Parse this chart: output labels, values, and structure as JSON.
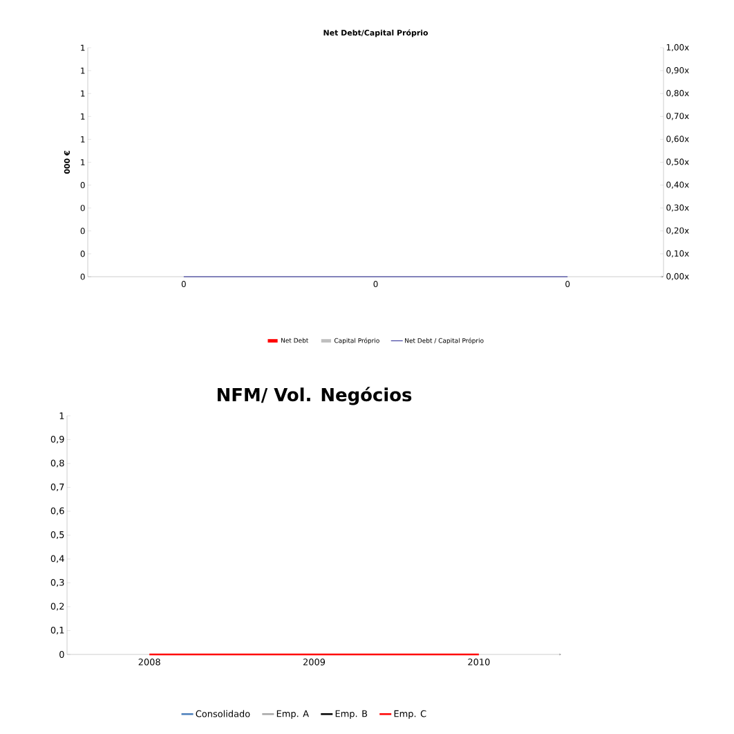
{
  "chart_data": [
    {
      "type": "bar",
      "title": "Net Debt/Capital Próprio",
      "ylabel": "000 €",
      "categories": [
        "0",
        "0",
        "0"
      ],
      "series": [
        {
          "name": "Net Debt",
          "color": "#ff0000",
          "values": [
            0,
            0,
            0
          ]
        },
        {
          "name": "Capital Próprio",
          "color": "#bfbfbf",
          "values": [
            0,
            0,
            0
          ]
        },
        {
          "name": "Net Debt / Capital Próprio",
          "type": "line",
          "axis": "y2",
          "color": "#1f1f8f",
          "values": [
            0,
            0,
            0
          ]
        }
      ],
      "ylim": [
        0,
        1
      ],
      "yticks": [
        {
          "value": 0,
          "label": "0"
        },
        {
          "value": 0.1,
          "label": "0"
        },
        {
          "value": 0.2,
          "label": "0"
        },
        {
          "value": 0.3,
          "label": "0"
        },
        {
          "value": 0.4,
          "label": "0"
        },
        {
          "value": 0.5,
          "label": "1"
        },
        {
          "value": 0.6,
          "label": "1"
        },
        {
          "value": 0.7,
          "label": "1"
        },
        {
          "value": 0.8,
          "label": "1"
        },
        {
          "value": 0.9,
          "label": "1"
        },
        {
          "value": 1,
          "label": "1"
        }
      ],
      "y2lim": [
        0,
        1
      ],
      "y2ticks": [
        {
          "value": 0,
          "label": "0,00x"
        },
        {
          "value": 0.1,
          "label": "0,10x"
        },
        {
          "value": 0.2,
          "label": "0,20x"
        },
        {
          "value": 0.3,
          "label": "0,30x"
        },
        {
          "value": 0.4,
          "label": "0,40x"
        },
        {
          "value": 0.5,
          "label": "0,50x"
        },
        {
          "value": 0.6,
          "label": "0,60x"
        },
        {
          "value": 0.7,
          "label": "0,70x"
        },
        {
          "value": 0.8,
          "label": "0,80x"
        },
        {
          "value": 0.9,
          "label": "0,90x"
        },
        {
          "value": 1,
          "label": "1,00x"
        }
      ],
      "legend": "bottom"
    },
    {
      "type": "line",
      "title": "NFM/ Vol. Negócios",
      "categories": [
        "2008",
        "2009",
        "2010"
      ],
      "series": [
        {
          "name": "Consolidado",
          "color": "#4a7ebb",
          "values": [
            null,
            null,
            null
          ]
        },
        {
          "name": "Emp. A",
          "color": "#a6a6a6",
          "values": [
            null,
            null,
            null
          ]
        },
        {
          "name": "Emp. B",
          "color": "#000000",
          "values": [
            null,
            null,
            null
          ]
        },
        {
          "name": "Emp. C",
          "color": "#ff0000",
          "values": [
            0,
            0,
            0
          ]
        }
      ],
      "ylim": [
        0,
        1
      ],
      "yticks": [
        0,
        {
          "value": 0.1,
          "label": "0,1"
        },
        {
          "value": 0.2,
          "label": "0,2"
        },
        {
          "value": 0.3,
          "label": "0,3"
        },
        {
          "value": 0.4,
          "label": "0,4"
        },
        {
          "value": 0.5,
          "label": "0,5"
        },
        {
          "value": 0.6,
          "label": "0,6"
        },
        {
          "value": 0.7,
          "label": "0,7"
        },
        {
          "value": 0.8,
          "label": "0,8"
        },
        {
          "value": 0.9,
          "label": "0,9"
        },
        1
      ],
      "legend": "bottom"
    }
  ]
}
